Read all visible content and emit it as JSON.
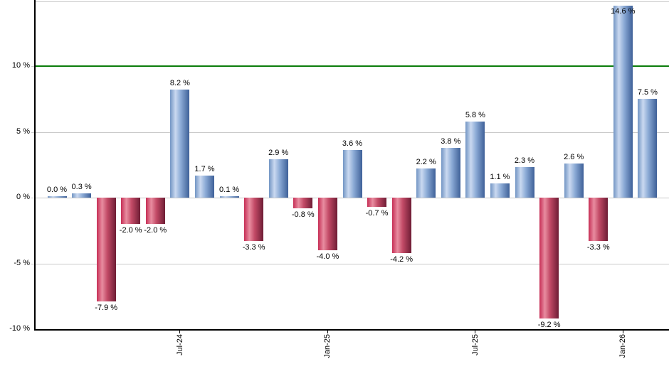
{
  "chart_data": {
    "type": "bar",
    "title": "",
    "description": "Monthly percentage returns bar chart, blue bars positive, red bars negative",
    "values": [
      0.0,
      0.3,
      -7.9,
      -2.0,
      -2.0,
      8.2,
      1.7,
      0.1,
      -3.3,
      2.9,
      -0.8,
      -4.0,
      3.6,
      -0.7,
      -4.2,
      2.2,
      3.8,
      5.8,
      1.1,
      2.3,
      -9.2,
      2.6,
      -3.3,
      14.6,
      7.5
    ],
    "bar_labels": [
      "0.0 %",
      "0.3 %",
      "-7.9 %",
      "-2.0 %",
      "-2.0 %",
      "8.2 %",
      "1.7 %",
      "0.1 %",
      "-3.3 %",
      "2.9 %",
      "-0.8 %",
      "-4.0 %",
      "3.6 %",
      "-0.7 %",
      "-4.2 %",
      "2.2 %",
      "3.8 %",
      "5.8 %",
      "1.1 %",
      "2.3 %",
      "-9.2 %",
      "2.6 %",
      "-3.3 %",
      "14.6 %",
      "7.5 %"
    ],
    "x_ticks": [
      {
        "bar_index": 5,
        "label": "Jul-24"
      },
      {
        "bar_index": 11,
        "label": "Jan-25"
      },
      {
        "bar_index": 17,
        "label": "Jul-25"
      },
      {
        "bar_index": 23,
        "label": "Jan-26"
      }
    ],
    "y_ticks": [
      {
        "value": 10,
        "label": "10 %"
      },
      {
        "value": 5,
        "label": "5 %"
      },
      {
        "value": 0,
        "label": "0 %"
      },
      {
        "value": -5,
        "label": "-5 %"
      },
      {
        "value": -10,
        "label": "-10 %"
      }
    ],
    "ylim": [
      -10,
      15
    ],
    "grid": true,
    "legend": false,
    "reference_line": {
      "value": 10,
      "color": "#0a7d0a"
    },
    "colors": {
      "positive_gradient": [
        "#7295c4",
        "#cad9f0",
        "#8cabd6",
        "#3e6098"
      ],
      "negative_gradient": [
        "#c62e55",
        "#e88da0",
        "#c24a66",
        "#6e1d35"
      ],
      "gridline": "#c9c9c9",
      "axis": "#000000",
      "label_text": "#000000",
      "background": "#ffffff"
    }
  }
}
